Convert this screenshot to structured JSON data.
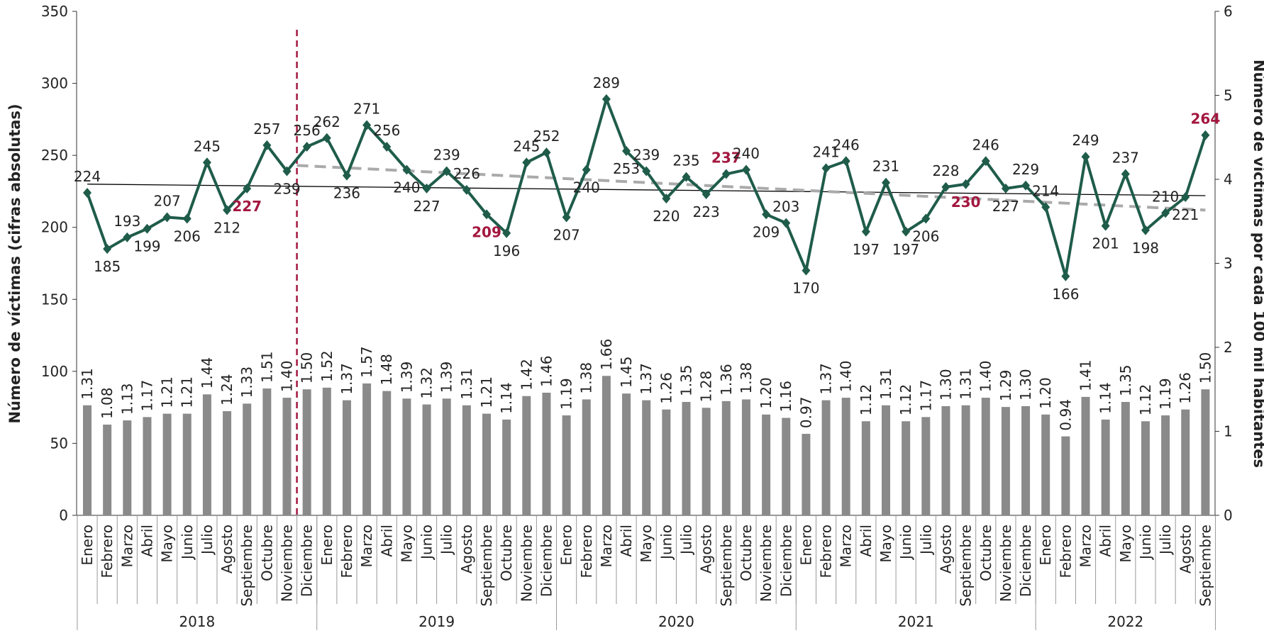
{
  "chart_data": {
    "type": "combo",
    "y_axis_title": "Número de víctimas (cifras absolutas)",
    "y2_axis_title": "Número de víctimas por cada 100 mil habitantes",
    "categories": [
      "Enero",
      "Febrero",
      "Marzo",
      "Abril",
      "Mayo",
      "Junio",
      "Julio",
      "Agosto",
      "Septiembre",
      "Octubre",
      "Noviembre",
      "Diciembre",
      "Enero",
      "Febrero",
      "Marzo",
      "Abril",
      "Mayo",
      "Junio",
      "Julio",
      "Agosto",
      "Septiembre",
      "Octubre",
      "Noviembre",
      "Diciembre",
      "Enero",
      "Febrero",
      "Marzo",
      "Abril",
      "Mayo",
      "Junio",
      "Julio",
      "Agosto",
      "Septiembre",
      "Octubre",
      "Noviembre",
      "Diciembre",
      "Enero",
      "Febrero",
      "Marzo",
      "Abril",
      "Mayo",
      "Junio",
      "Julio",
      "Agosto",
      "Septiembre",
      "Octubre",
      "Noviembre",
      "Diciembre",
      "Enero",
      "Febrero",
      "Marzo",
      "Abril",
      "Mayo",
      "Junio",
      "Julio",
      "Agosto",
      "Septiembre"
    ],
    "years": [
      {
        "label": "2018",
        "count": 12
      },
      {
        "label": "2019",
        "count": 12
      },
      {
        "label": "2020",
        "count": 12
      },
      {
        "label": "2021",
        "count": 12
      },
      {
        "label": "2022",
        "count": 9
      }
    ],
    "ylim": [
      0,
      350
    ],
    "yticks": [
      0,
      50,
      100,
      150,
      200,
      250,
      300,
      350
    ],
    "y2lim": [
      0,
      6
    ],
    "y2ticks": [
      0,
      1,
      2,
      3,
      4,
      5,
      6
    ],
    "series": [
      {
        "type": "bar",
        "axis": "y2",
        "color": "#8a8a8a",
        "values": [
          1.31,
          1.08,
          1.13,
          1.17,
          1.21,
          1.21,
          1.44,
          1.24,
          1.33,
          1.51,
          1.4,
          1.5,
          1.52,
          1.37,
          1.57,
          1.48,
          1.39,
          1.32,
          1.39,
          1.31,
          1.21,
          1.14,
          1.42,
          1.46,
          1.19,
          1.38,
          1.66,
          1.45,
          1.37,
          1.26,
          1.35,
          1.28,
          1.36,
          1.38,
          1.2,
          1.16,
          0.97,
          1.37,
          1.4,
          1.12,
          1.31,
          1.12,
          1.17,
          1.3,
          1.31,
          1.4,
          1.29,
          1.3,
          1.2,
          0.94,
          1.41,
          1.14,
          1.35,
          1.12,
          1.19,
          1.26,
          1.5
        ],
        "value_labels": [
          "1.31",
          "1.08",
          "1.13",
          "1.17",
          "1.21",
          "1.21",
          "1.44",
          "1.24",
          "1.33",
          "1.51",
          "1.40",
          "1.50",
          "1.52",
          "1.37",
          "1.57",
          "1.48",
          "1.39",
          "1.32",
          "1.39",
          "1.31",
          "1.21",
          "1.14",
          "1.42",
          "1.46",
          "1.19",
          "1.38",
          "1.66",
          "1.45",
          "1.37",
          "1.26",
          "1.35",
          "1.28",
          "1.36",
          "1.38",
          "1.20",
          "1.16",
          "0.97",
          "1.37",
          "1.40",
          "1.12",
          "1.31",
          "1.12",
          "1.17",
          "1.30",
          "1.31",
          "1.40",
          "1.29",
          "1.30",
          "1.20",
          "0.94",
          "1.41",
          "1.14",
          "1.35",
          "1.12",
          "1.19",
          "1.26",
          "1.50"
        ]
      },
      {
        "type": "line",
        "axis": "y",
        "color": "#1f5c4a",
        "values": [
          224,
          185,
          193,
          199,
          207,
          206,
          245,
          212,
          227,
          257,
          239,
          256,
          262,
          236,
          271,
          256,
          240,
          227,
          239,
          226,
          209,
          196,
          245,
          252,
          207,
          240,
          289,
          253,
          239,
          220,
          235,
          223,
          237,
          240,
          209,
          203,
          170,
          241,
          246,
          197,
          231,
          197,
          206,
          228,
          230,
          246,
          227,
          229,
          214,
          166,
          249,
          201,
          237,
          198,
          210,
          221,
          264
        ],
        "highlight": {
          "color": "#a3173f",
          "points": [
            8,
            20,
            32,
            44,
            56
          ]
        }
      }
    ],
    "trendlines": [
      {
        "color": "#000000",
        "style": "solid",
        "x": [
          0,
          56
        ],
        "values": [
          230,
          222
        ]
      },
      {
        "color": "#aaaaaa",
        "style": "dashed",
        "x": [
          10.5,
          56
        ],
        "values": [
          243,
          212
        ]
      }
    ]
  }
}
